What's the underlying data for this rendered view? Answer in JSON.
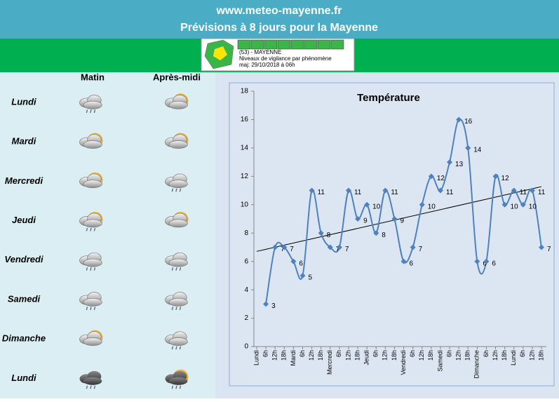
{
  "header": {
    "title": "www.meteo-mayenne.fr",
    "subtitle": "Prévisions à 8 jours pour la Mayenne"
  },
  "vigilance": {
    "department": "(53) - MAYENNE",
    "description": "Niveaux de vigilance par phénomène",
    "updated": "maj: 29/10/2018 à 06h"
  },
  "forecast": {
    "columns": [
      "Matin",
      "Après-midi"
    ],
    "days": [
      "Lundi",
      "Mardi",
      "Mercredi",
      "Jeudi",
      "Vendredi",
      "Samedi",
      "Dimanche",
      "Lundi"
    ]
  },
  "chart_data": {
    "type": "line",
    "title": "Température",
    "categories": [
      "Lundi",
      "6h",
      "12h",
      "18h",
      "Mardi",
      "6h",
      "12h",
      "18h",
      "Mercredi",
      "6h",
      "12h",
      "18h",
      "Jeudi",
      "6h",
      "12h",
      "18h",
      "Vendredi",
      "6h",
      "12h",
      "18h",
      "Samedi",
      "6h",
      "12h",
      "18h",
      "Dimanche",
      "6h",
      "12h",
      "18h",
      "Lundi",
      "6h",
      "12h",
      "18h"
    ],
    "values": [
      null,
      3,
      7,
      7,
      6,
      5,
      11,
      8,
      7,
      7,
      11,
      9,
      10,
      8,
      11,
      9,
      6,
      7,
      10,
      12,
      11,
      13,
      16,
      14,
      6,
      6,
      12,
      10,
      11,
      10,
      11,
      7
    ],
    "color": "#4f81bd",
    "trendline": true,
    "ylim": [
      0,
      18
    ],
    "yticks": [
      0,
      2,
      4,
      6,
      8,
      10,
      12,
      14,
      16,
      18
    ]
  }
}
